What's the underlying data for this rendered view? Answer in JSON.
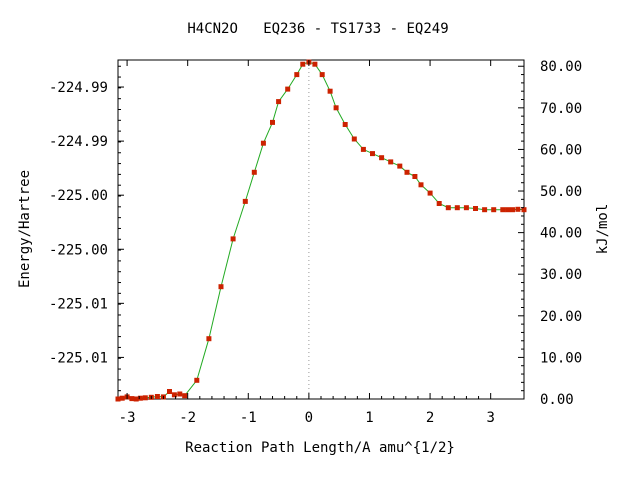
{
  "chart_data": {
    "type": "line",
    "title": "H4CN2O   EQ236 - TS1733 - EQ249",
    "xlabel": "Reaction Path Length/A amu^{1/2}",
    "ylabel_left": "Energy/Hartree",
    "ylabel_right": "kJ/mol",
    "xlim": [
      -3.15,
      3.55
    ],
    "ylim_right": [
      0,
      81.5
    ],
    "x_ticks": [
      -3,
      -2,
      -1,
      0,
      1,
      2,
      3
    ],
    "x_tick_labels": [
      "-3",
      "-2",
      "-1",
      "0",
      "1",
      "2",
      "3"
    ],
    "y_left_tick_labels": [
      "-224.99",
      "-224.99",
      "-225.00",
      "-225.00",
      "-225.01",
      "-225.01"
    ],
    "y_left_tick_positions_kjmol": [
      75,
      62,
      49,
      36,
      23,
      10
    ],
    "y_right_ticks": [
      0,
      10,
      20,
      30,
      40,
      50,
      60,
      70,
      80
    ],
    "y_right_tick_labels": [
      "0.00",
      "10.00",
      "20.00",
      "30.00",
      "40.00",
      "50.00",
      "60.00",
      "70.00",
      "80.00"
    ],
    "ts_x": 0.0,
    "line_color": "#22aa22",
    "point_color": "#cc2200",
    "ts_line_color": "#999999",
    "x": [
      -3.15,
      -3.08,
      -3.0,
      -2.92,
      -2.85,
      -2.78,
      -2.7,
      -2.6,
      -2.5,
      -2.4,
      -2.3,
      -2.22,
      -2.13,
      -2.05,
      -1.85,
      -1.65,
      -1.45,
      -1.25,
      -1.05,
      -0.9,
      -0.75,
      -0.6,
      -0.5,
      -0.35,
      -0.2,
      -0.1,
      0.0,
      0.1,
      0.22,
      0.35,
      0.45,
      0.6,
      0.75,
      0.9,
      1.05,
      1.2,
      1.35,
      1.5,
      1.62,
      1.75,
      1.85,
      2.0,
      2.15,
      2.3,
      2.45,
      2.6,
      2.75,
      2.9,
      3.05,
      3.2,
      3.28,
      3.36,
      3.45,
      3.55
    ],
    "y": [
      0.0,
      0.2,
      0.5,
      0.1,
      0.0,
      0.2,
      0.3,
      0.4,
      0.6,
      0.5,
      1.8,
      1.0,
      1.2,
      0.8,
      4.5,
      14.5,
      27.0,
      38.5,
      47.5,
      54.5,
      61.5,
      66.5,
      71.5,
      74.5,
      78.0,
      80.5,
      81.0,
      80.5,
      78.0,
      74.0,
      70.0,
      66.0,
      62.5,
      60.0,
      59.0,
      58.0,
      57.0,
      56.0,
      54.5,
      53.5,
      51.5,
      49.5,
      47.0,
      46.0,
      46.0,
      46.0,
      45.8,
      45.5,
      45.5,
      45.5,
      45.5,
      45.5,
      45.6,
      45.5
    ]
  }
}
